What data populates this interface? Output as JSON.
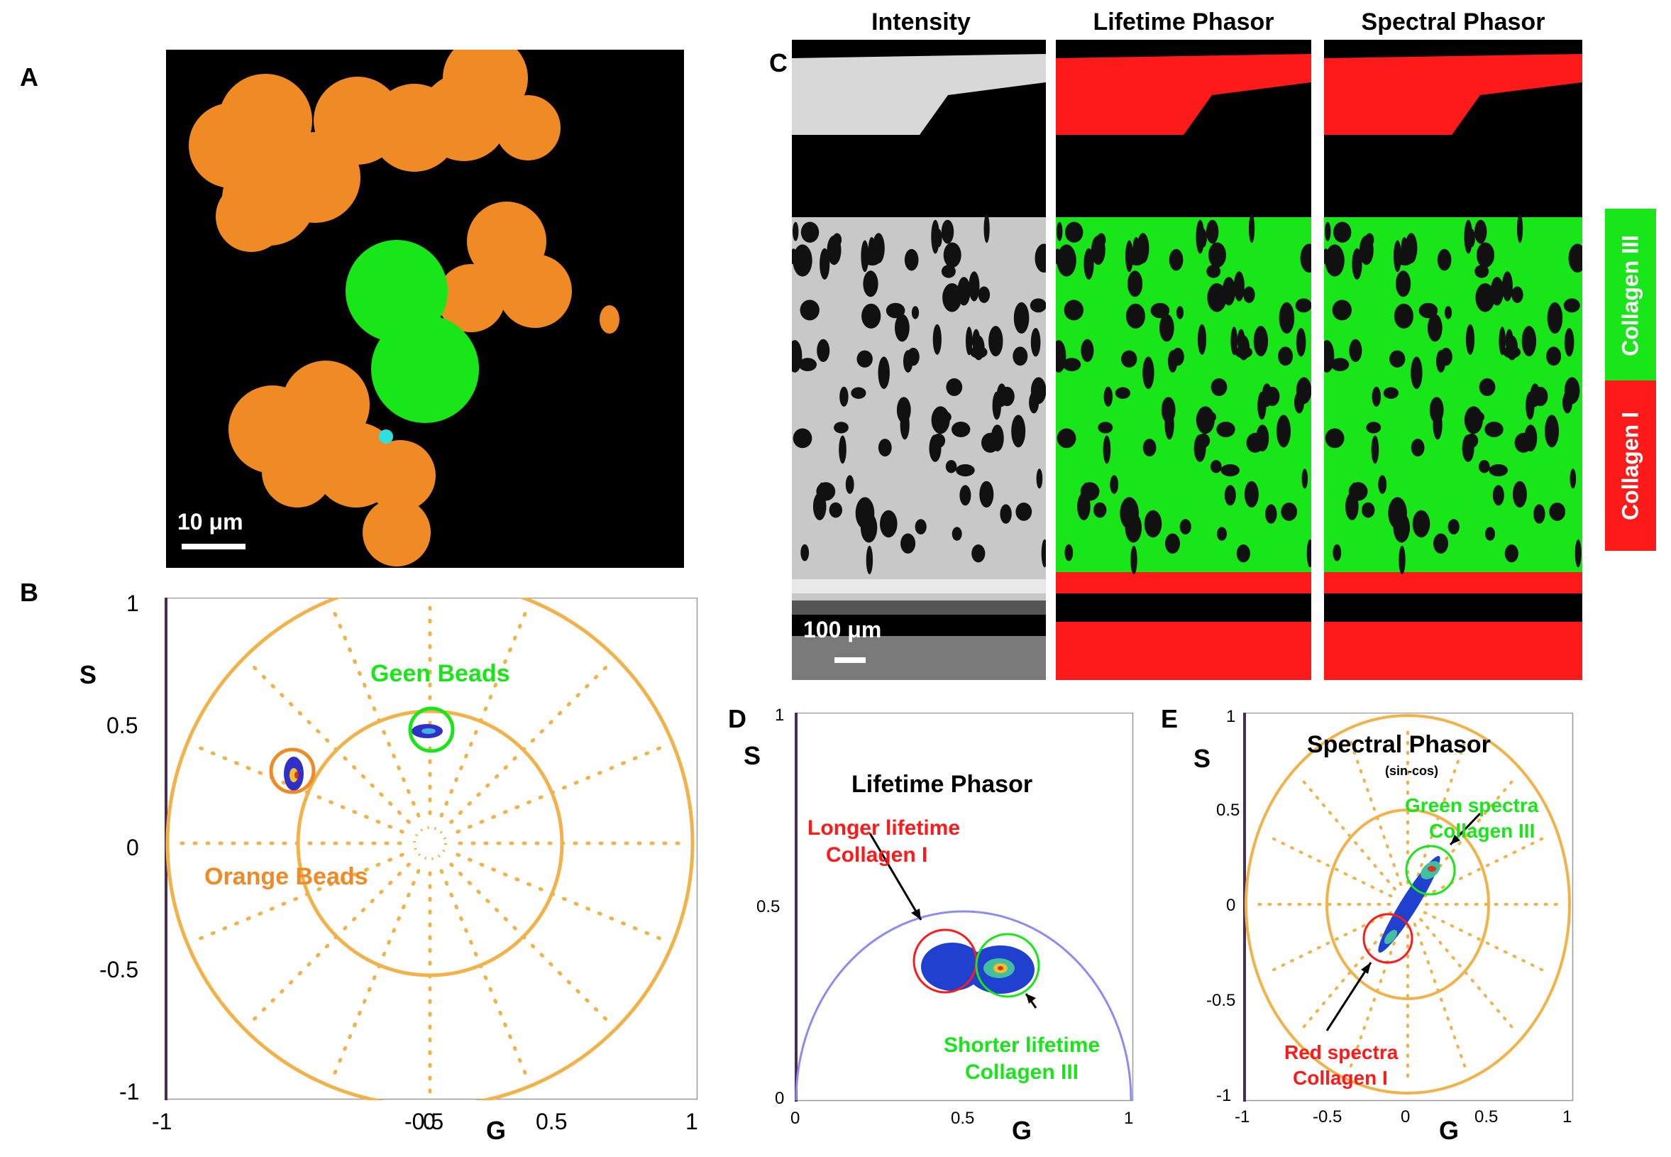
{
  "panels": {
    "A": {
      "letter": "A",
      "scale_bar": "10 μm"
    },
    "B": {
      "letter": "B",
      "y_axis_label": "S",
      "x_axis_label": "G",
      "y_ticks": [
        "1",
        "0.5",
        "0",
        "-0.5",
        "-1"
      ],
      "x_ticks": [
        "-1",
        "-0.5",
        "0",
        "0.5",
        "1"
      ],
      "annotation_green": "Geen Beads",
      "annotation_orange": "Orange Beads"
    },
    "C": {
      "letter": "C",
      "titles": [
        "Intensity",
        "Lifetime Phasor",
        "Spectral Phasor"
      ],
      "scale_bar": "100 μm",
      "legend": [
        "Collagen III",
        "Collagen I"
      ]
    },
    "D": {
      "letter": "D",
      "title": "Lifetime Phasor",
      "y_axis_label": "S",
      "x_axis_label": "G",
      "y_ticks": [
        "1",
        "0.5",
        "0"
      ],
      "x_ticks": [
        "0",
        "0.5",
        "1"
      ],
      "annotation_red_line1": "Longer lifetime",
      "annotation_red_line2": "Collagen I",
      "annotation_green_line1": "Shorter lifetime",
      "annotation_green_line2": "Collagen III"
    },
    "E": {
      "letter": "E",
      "title": "Spectral Phasor",
      "subtitle": "(sin-cos)",
      "y_axis_label": "S",
      "x_axis_label": "G",
      "y_ticks": [
        "1",
        "0.5",
        "0",
        "-0.5",
        "-1"
      ],
      "x_ticks": [
        "-1",
        "-0.5",
        "0",
        "0.5",
        "1"
      ],
      "annotation_green_line1": "Green spectra",
      "annotation_green_line2": "Collagen III",
      "annotation_red_line1": "Red spectra",
      "annotation_red_line2": "Collagen I"
    }
  },
  "colors": {
    "orange": "#f08a24",
    "green": "#19e619",
    "red": "#ff1a1a",
    "phasor_circle": "#f2b24a",
    "semicircle": "#8b8bf2"
  }
}
